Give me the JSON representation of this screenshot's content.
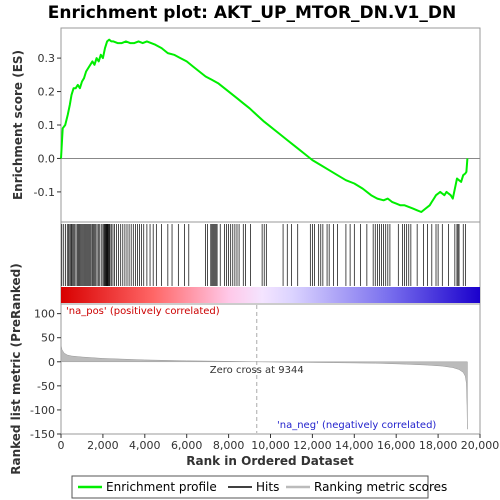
{
  "chart_data": {
    "type": "line",
    "title": "Enrichment plot: AKT_UP_MTOR_DN.V1_DN",
    "xlabel": "Rank in Ordered Dataset",
    "xlim": [
      0,
      20000
    ],
    "x_ticks": [
      0,
      2000,
      4000,
      6000,
      8000,
      10000,
      12000,
      14000,
      16000,
      18000,
      20000
    ],
    "x_tick_labels": [
      "0",
      "2,000",
      "4,000",
      "6,000",
      "8,000",
      "10,000",
      "12,000",
      "14,000",
      "16,000",
      "18,000",
      "20,000"
    ],
    "n_genes": 19400,
    "es_panel": {
      "ylabel": "Enrichment score (ES)",
      "ylim": [
        -0.19,
        0.39
      ],
      "y_ticks": [
        -0.1,
        0.0,
        0.1,
        0.2,
        0.3
      ],
      "y_tick_labels": [
        "-0.1",
        "0.0",
        "0.1",
        "0.2",
        "0.3"
      ],
      "series_name": "Enrichment profile",
      "color": "#00ee00",
      "x": [
        0,
        80,
        200,
        320,
        420,
        500,
        600,
        700,
        800,
        900,
        1000,
        1100,
        1200,
        1300,
        1400,
        1500,
        1600,
        1700,
        1800,
        1900,
        2000,
        2100,
        2200,
        2300,
        2400,
        2500,
        2700,
        2900,
        3100,
        3300,
        3500,
        3700,
        3900,
        4100,
        4300,
        4500,
        4800,
        5100,
        5400,
        5700,
        6000,
        6300,
        6600,
        6900,
        7200,
        7500,
        7800,
        8100,
        8400,
        8700,
        9000,
        9344,
        9700,
        10000,
        10400,
        10800,
        11200,
        11600,
        12000,
        12400,
        12800,
        13200,
        13600,
        14000,
        14400,
        14800,
        15100,
        15400,
        15600,
        15800,
        16000,
        16200,
        16400,
        16600,
        16800,
        17000,
        17200,
        17400,
        17600,
        17700,
        17800,
        17900,
        18000,
        18100,
        18200,
        18300,
        18400,
        18500,
        18600,
        18700,
        18800,
        18900,
        19000,
        19100,
        19200,
        19300,
        19350,
        19400
      ],
      "y": [
        0.0,
        0.09,
        0.1,
        0.13,
        0.16,
        0.19,
        0.21,
        0.21,
        0.22,
        0.21,
        0.23,
        0.24,
        0.26,
        0.27,
        0.28,
        0.29,
        0.28,
        0.3,
        0.29,
        0.31,
        0.3,
        0.33,
        0.35,
        0.355,
        0.35,
        0.35,
        0.345,
        0.345,
        0.35,
        0.345,
        0.345,
        0.35,
        0.345,
        0.35,
        0.345,
        0.34,
        0.33,
        0.315,
        0.31,
        0.3,
        0.29,
        0.275,
        0.26,
        0.245,
        0.235,
        0.225,
        0.21,
        0.195,
        0.18,
        0.165,
        0.15,
        0.13,
        0.11,
        0.095,
        0.075,
        0.055,
        0.035,
        0.015,
        -0.005,
        -0.02,
        -0.035,
        -0.05,
        -0.065,
        -0.075,
        -0.09,
        -0.11,
        -0.12,
        -0.125,
        -0.12,
        -0.13,
        -0.135,
        -0.14,
        -0.14,
        -0.145,
        -0.15,
        -0.155,
        -0.16,
        -0.15,
        -0.14,
        -0.13,
        -0.12,
        -0.11,
        -0.105,
        -0.1,
        -0.105,
        -0.11,
        -0.1,
        -0.105,
        -0.11,
        -0.12,
        -0.09,
        -0.06,
        -0.065,
        -0.07,
        -0.05,
        -0.045,
        -0.04,
        0.0
      ]
    },
    "hits": [
      40,
      130,
      220,
      300,
      360,
      420,
      470,
      510,
      560,
      610,
      660,
      720,
      780,
      830,
      880,
      940,
      990,
      1040,
      1090,
      1140,
      1190,
      1240,
      1290,
      1340,
      1390,
      1440,
      1500,
      1560,
      1610,
      1660,
      1720,
      1780,
      1850,
      1920,
      2000,
      2050,
      2090,
      2120,
      2150,
      2180,
      2210,
      2240,
      2270,
      2300,
      2340,
      2400,
      2480,
      2560,
      2650,
      2750,
      2850,
      2950,
      3050,
      3150,
      3250,
      3350,
      3450,
      3550,
      3650,
      3750,
      3850,
      3950,
      4100,
      4250,
      4400,
      4550,
      4800,
      5100,
      5300,
      5600,
      5900,
      6100,
      6900,
      7000,
      7150,
      7200,
      7250,
      7300,
      7350,
      7400,
      7450,
      7600,
      7800,
      7900,
      8000,
      8100,
      8200,
      8300,
      8400,
      8500,
      8700,
      8800,
      9050,
      9600,
      9700,
      9800,
      10600,
      10800,
      11000,
      11300,
      11900,
      12000,
      12100,
      12300,
      12400,
      12500,
      12700,
      12800,
      13000,
      13200,
      13600,
      13800,
      14000,
      14300,
      14600,
      14900,
      15000,
      15100,
      15200,
      15300,
      15400,
      15500,
      15600,
      15700,
      16100,
      16300,
      16400,
      16500,
      16600,
      16700,
      17000,
      17300,
      17500,
      17700,
      17900,
      18000,
      18200,
      18500,
      18800,
      18900,
      18950,
      19000,
      19200,
      19300
    ],
    "rank_panel": {
      "ylabel": "Ranked list metric (PreRanked)",
      "ylim": [
        -150,
        120
      ],
      "y_ticks": [
        -150,
        -100,
        -50,
        0,
        50,
        100
      ],
      "y_tick_labels": [
        "-150",
        "-100",
        "-50",
        "0",
        "50",
        "100"
      ],
      "x": [
        0,
        50,
        150,
        300,
        500,
        1000,
        2000,
        4000,
        6000,
        8000,
        9344,
        11000,
        13000,
        15000,
        16500,
        17500,
        18200,
        18700,
        19000,
        19200,
        19300,
        19350,
        19380,
        19400
      ],
      "y": [
        35,
        25,
        18,
        14,
        12,
        10,
        7,
        4,
        2,
        1,
        0,
        -1,
        -2,
        -3,
        -5,
        -7,
        -9,
        -12,
        -16,
        -22,
        -30,
        -45,
        -90,
        -140
      ],
      "zero_cross_rank": 9344,
      "zero_cross_label": "Zero cross at 9344",
      "pos_label": "'na_pos' (positively correlated)",
      "neg_label": "'na_neg' (negatively correlated)",
      "pos_color": "#ee0000",
      "neg_color": "#2222cc"
    },
    "legend": [
      "Enrichment profile",
      "Hits",
      "Ranking metric scores"
    ]
  }
}
